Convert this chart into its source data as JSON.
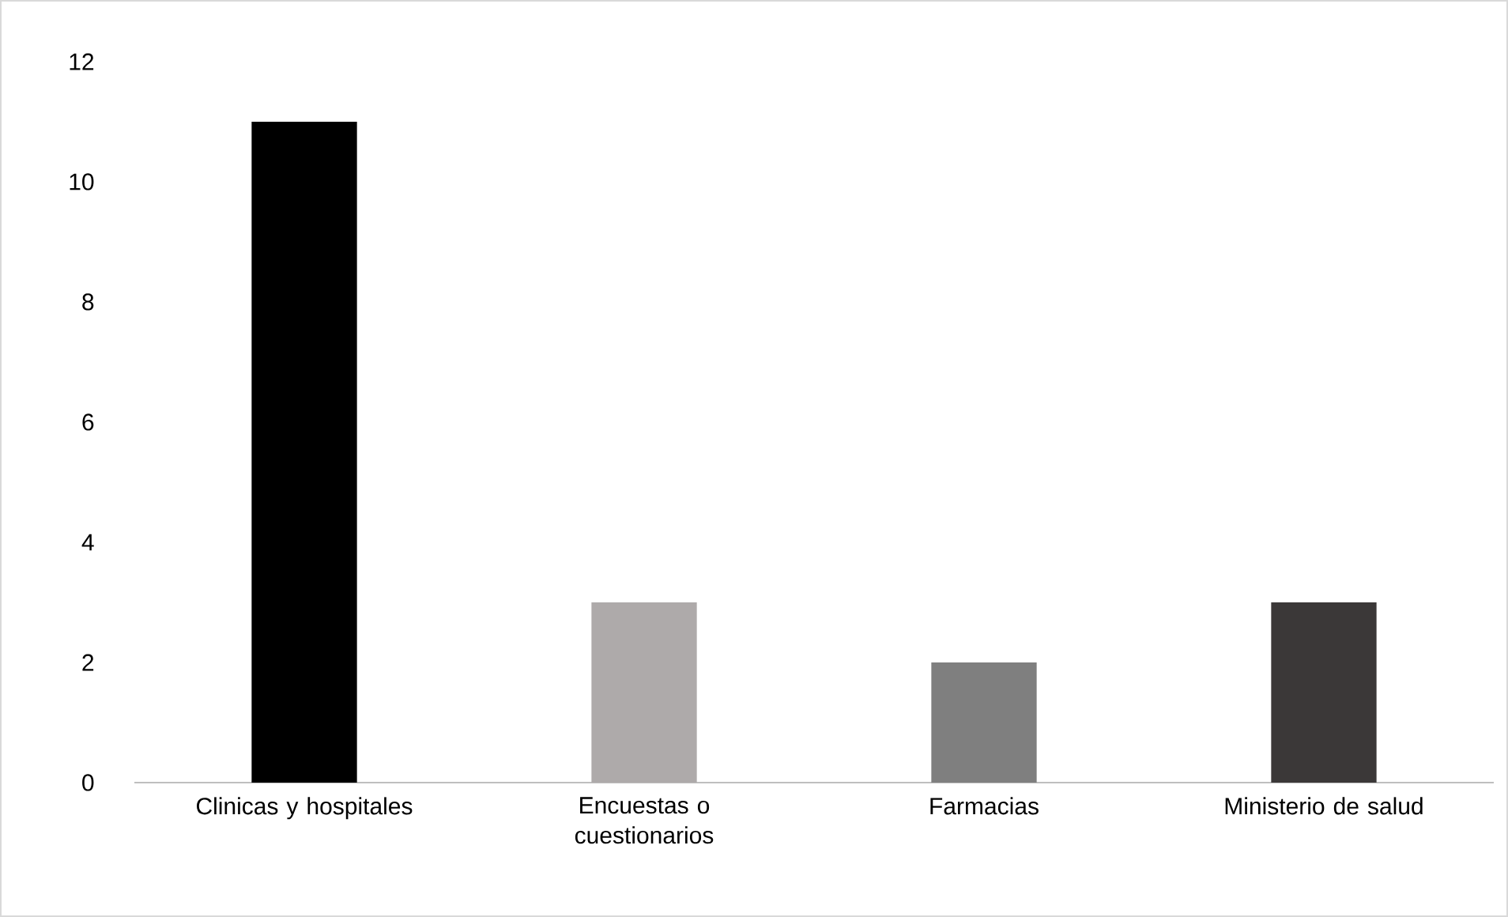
{
  "chart_data": {
    "type": "bar",
    "categories": [
      "Clinicas y hospitales",
      "Encuestas o cuestionarios",
      "Farmacias",
      "Ministerio de salud"
    ],
    "values": [
      11,
      3,
      2,
      3
    ],
    "colors": [
      "#000000",
      "#aeaaaa",
      "#7f7f7f",
      "#3b3838"
    ],
    "ylim": [
      0,
      12
    ],
    "yticks": [
      0,
      2,
      4,
      6,
      8,
      10,
      12
    ]
  }
}
